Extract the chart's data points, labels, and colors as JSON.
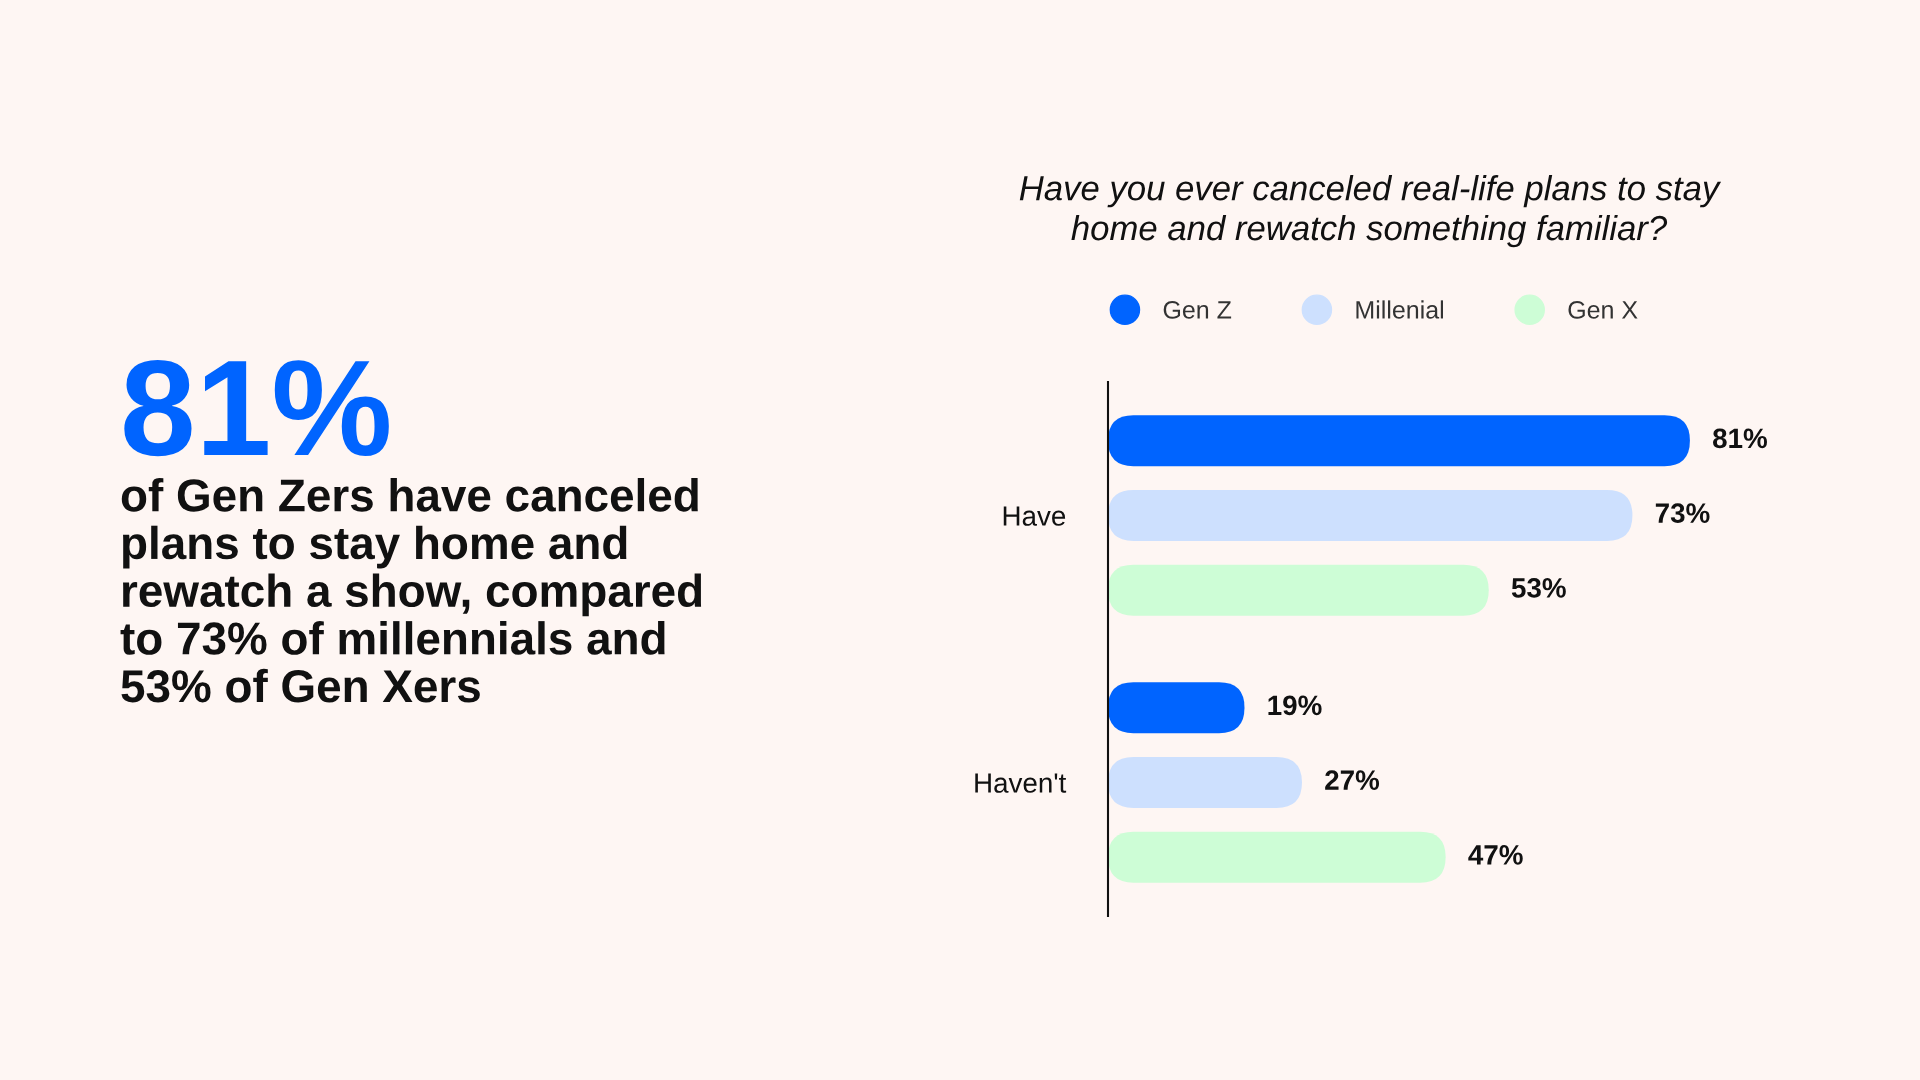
{
  "chart_data": {
    "type": "bar",
    "orientation": "horizontal",
    "title": "Have you ever canceled real-life plans to stay home and rewatch something familiar?",
    "categories": [
      "Have",
      "Haven't"
    ],
    "series": [
      {
        "name": "Gen Z",
        "color": "#0064ff",
        "values": [
          81,
          19
        ],
        "value_labels": [
          "81%",
          "19%"
        ]
      },
      {
        "name": "Millenial",
        "color": "#cde0fe",
        "values": [
          73,
          27
        ],
        "value_labels": [
          "73%",
          "27%"
        ]
      },
      {
        "name": "Gen X",
        "color": "#cdfdd6",
        "values": [
          53,
          47
        ],
        "value_labels": [
          "53%",
          "47%"
        ]
      }
    ],
    "legend": "top",
    "tick_labels": "y",
    "annotations": [
      "81%",
      "of Gen Zers have canceled plans to stay home and rewatch a show, compared to 73% of millennials and 53% of Gen Xers"
    ]
  }
}
